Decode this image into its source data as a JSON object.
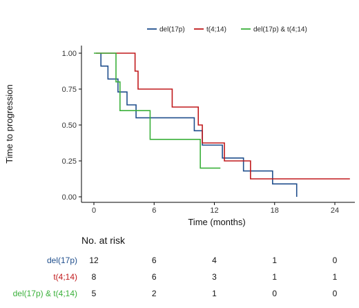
{
  "chart_data": {
    "type": "line",
    "subtype": "kaplan-meier-step",
    "title": "",
    "xlabel": "Time (months)",
    "ylabel": "Time to progression",
    "xlim": [
      0,
      25.5
    ],
    "ylim": [
      0,
      1.04
    ],
    "xticks": [
      0,
      6,
      12,
      18,
      24
    ],
    "yticks": [
      0.0,
      0.25,
      0.5,
      0.75,
      1.0
    ],
    "ytick_labels": [
      "0.00",
      "0.25",
      "0.50",
      "0.75",
      "1.00"
    ],
    "grid": false,
    "legend_position": "top",
    "series": [
      {
        "name": "del(17p)",
        "color": "#1f4e8c",
        "steps": [
          [
            0.7,
            1.0
          ],
          [
            0.7,
            0.91
          ],
          [
            1.4,
            0.82
          ],
          [
            2.4,
            0.73
          ],
          [
            3.3,
            0.64
          ],
          [
            4.2,
            0.55
          ],
          [
            10.0,
            0.46
          ],
          [
            10.8,
            0.36
          ],
          [
            12.8,
            0.27
          ],
          [
            14.9,
            0.18
          ],
          [
            17.8,
            0.09
          ],
          [
            20.2,
            0.0
          ]
        ],
        "end_x": 20.2
      },
      {
        "name": "t(4;14)",
        "color": "#c0191b",
        "steps": [
          [
            0.2,
            1.0
          ],
          [
            4.1,
            0.875
          ],
          [
            4.4,
            0.75
          ],
          [
            7.8,
            0.625
          ],
          [
            10.4,
            0.5
          ],
          [
            10.8,
            0.375
          ],
          [
            13.0,
            0.25
          ],
          [
            15.6,
            0.125
          ]
        ],
        "end_x": 25.5
      },
      {
        "name": "del(17p) & t(4;14)",
        "color": "#3ab03a",
        "steps": [
          [
            0.0,
            1.0
          ],
          [
            2.2,
            0.8
          ],
          [
            2.6,
            0.6
          ],
          [
            5.6,
            0.4
          ],
          [
            10.6,
            0.2
          ]
        ],
        "end_x": 12.6
      }
    ]
  },
  "risk_table": {
    "title": "No. at risk",
    "times": [
      0,
      6,
      12,
      18,
      24
    ],
    "rows": [
      {
        "label": "del(17p)",
        "color": "#1f4e8c",
        "values": [
          "12",
          "6",
          "4",
          "1",
          "0"
        ]
      },
      {
        "label": "t(4;14)",
        "color": "#c0191b",
        "values": [
          "8",
          "6",
          "3",
          "1",
          "1"
        ]
      },
      {
        "label": "del(17p) & t(4;14)",
        "color": "#3ab03a",
        "values": [
          "5",
          "2",
          "1",
          "0",
          "0"
        ]
      }
    ]
  }
}
